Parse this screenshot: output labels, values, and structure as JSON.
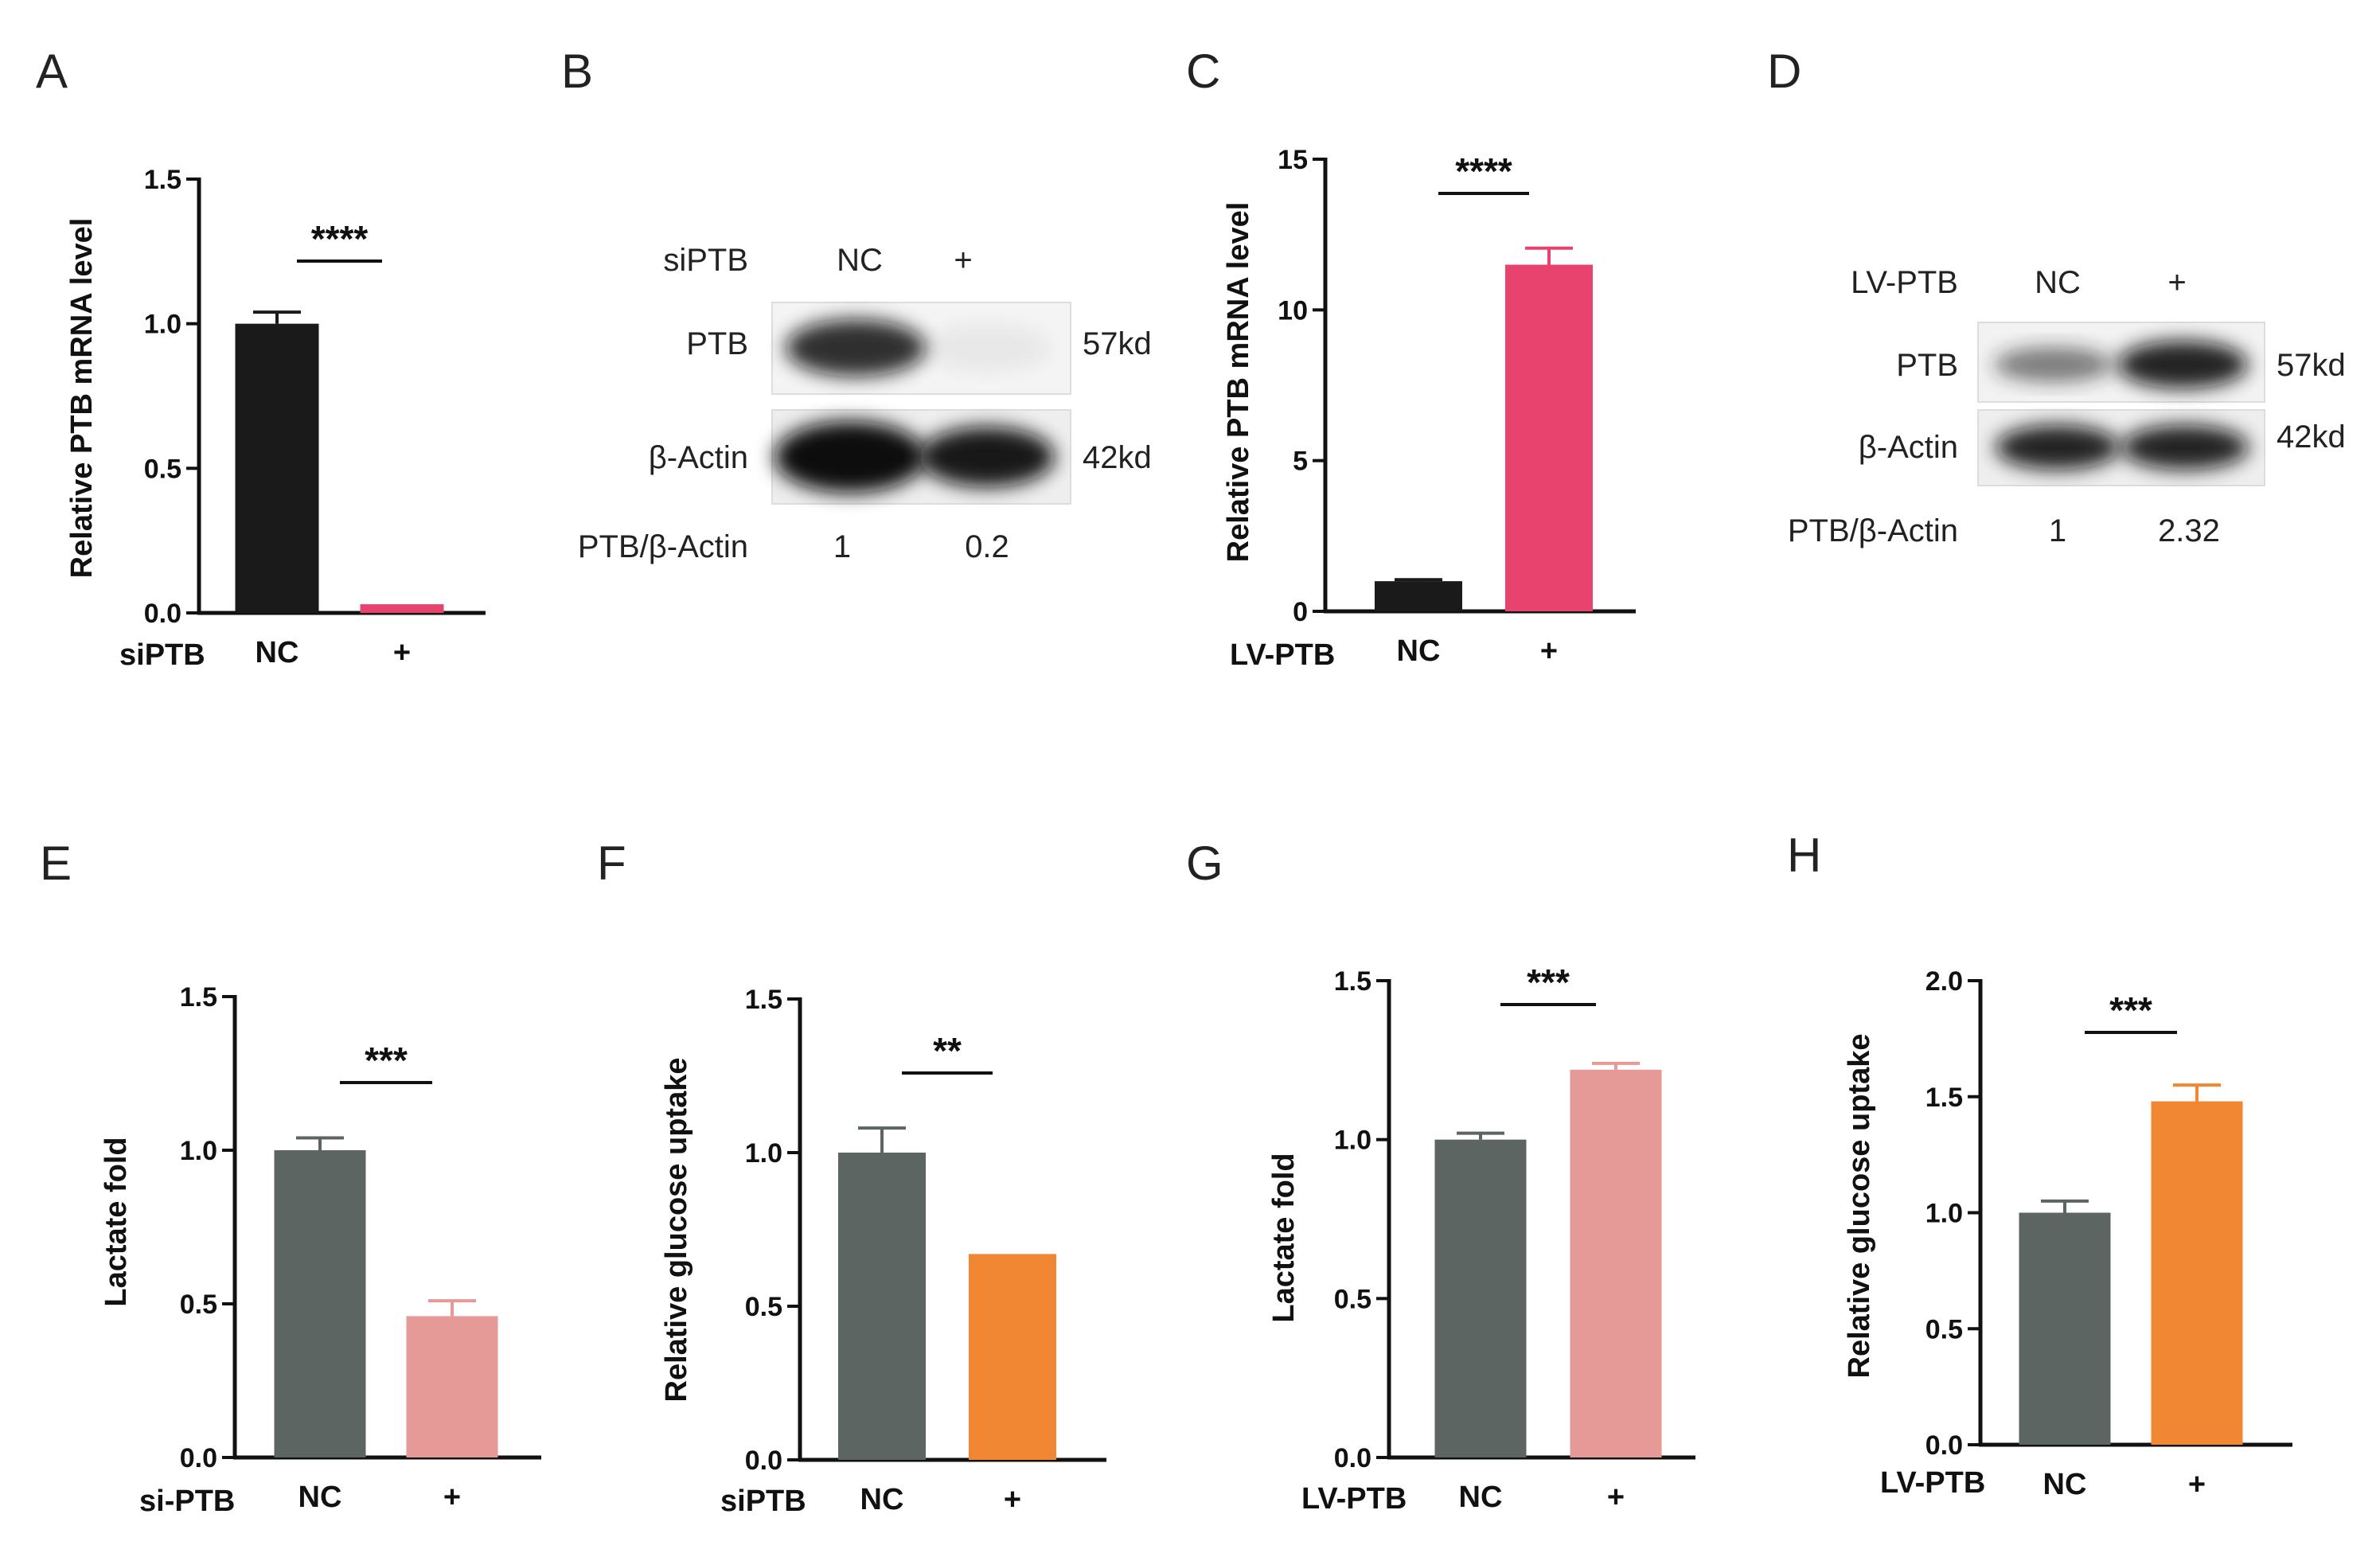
{
  "colors": {
    "black": "#1a1a1a",
    "pink": "#e8426e",
    "gray": "#5d6562",
    "salmon": "#e59a98",
    "orange": "#f18733"
  },
  "chart_data": [
    {
      "id": "A",
      "label": "A",
      "type": "bar",
      "ylabel": "Relative PTB mRNA level",
      "group_label": "siPTB",
      "categories": [
        "NC",
        "+"
      ],
      "values": [
        1.0,
        0.03
      ],
      "errors": [
        0.04,
        0.0
      ],
      "bar_colors": [
        "#1a1a1a",
        "#e8426e"
      ],
      "ylim": [
        0,
        1.5
      ],
      "yticks": [
        "0.0",
        "0.5",
        "1.0",
        "1.5"
      ],
      "yticks_num": [
        0,
        0.5,
        1.0,
        1.5
      ],
      "significance": "****"
    },
    {
      "id": "C",
      "label": "C",
      "type": "bar",
      "ylabel": "Relative PTB mRNA level",
      "group_label": "LV-PTB",
      "categories": [
        "NC",
        "+"
      ],
      "values": [
        1.0,
        11.5
      ],
      "errors": [
        0.05,
        0.55
      ],
      "bar_colors": [
        "#1a1a1a",
        "#e8426e"
      ],
      "ylim": [
        0,
        15
      ],
      "yticks": [
        "0",
        "5",
        "10",
        "15"
      ],
      "yticks_num": [
        0,
        5,
        10,
        15
      ],
      "significance": "****"
    },
    {
      "id": "E",
      "label": "E",
      "type": "bar",
      "ylabel": "Lactate fold",
      "group_label": "si-PTB",
      "categories": [
        "NC",
        "+"
      ],
      "values": [
        1.0,
        0.46
      ],
      "errors": [
        0.04,
        0.05
      ],
      "bar_colors": [
        "#5d6562",
        "#e59a98"
      ],
      "ylim": [
        0,
        1.5
      ],
      "yticks": [
        "0.0",
        "0.5",
        "1.0",
        "1.5"
      ],
      "yticks_num": [
        0,
        0.5,
        1.0,
        1.5
      ],
      "significance": "***"
    },
    {
      "id": "F",
      "label": "F",
      "type": "bar",
      "ylabel": "Relative glucose uptake",
      "group_label": "siPTB",
      "categories": [
        "NC",
        "+"
      ],
      "values": [
        1.0,
        0.67
      ],
      "errors": [
        0.08,
        0.0
      ],
      "bar_colors": [
        "#5d6562",
        "#f18733"
      ],
      "ylim": [
        0,
        1.5
      ],
      "yticks": [
        "0.0",
        "0.5",
        "1.0",
        "1.5"
      ],
      "yticks_num": [
        0,
        0.5,
        1.0,
        1.5
      ],
      "significance": "**"
    },
    {
      "id": "G",
      "label": "G",
      "type": "bar",
      "ylabel": "Lactate fold",
      "group_label": "LV-PTB",
      "categories": [
        "NC",
        "+"
      ],
      "values": [
        1.0,
        1.22
      ],
      "errors": [
        0.02,
        0.02
      ],
      "bar_colors": [
        "#5d6562",
        "#e59a98"
      ],
      "ylim": [
        0,
        1.5
      ],
      "yticks": [
        "0.0",
        "0.5",
        "1.0",
        "1.5"
      ],
      "yticks_num": [
        0,
        0.5,
        1.0,
        1.5
      ],
      "significance": "***"
    },
    {
      "id": "H",
      "label": "H",
      "type": "bar",
      "ylabel": "Relative glucose uptake",
      "group_label": "LV-PTB",
      "categories": [
        "NC",
        "+"
      ],
      "values": [
        1.0,
        1.48
      ],
      "errors": [
        0.05,
        0.07
      ],
      "bar_colors": [
        "#5d6562",
        "#f18733"
      ],
      "ylim": [
        0,
        2.0
      ],
      "yticks": [
        "0.0",
        "0.5",
        "1.0",
        "1.5",
        "2.0"
      ],
      "yticks_num": [
        0,
        0.5,
        1.0,
        1.5,
        2.0
      ],
      "significance": "***"
    }
  ],
  "blots": [
    {
      "id": "B",
      "label": "B",
      "treatment_label": "siPTB",
      "lanes": [
        "NC",
        "+"
      ],
      "rows": [
        {
          "name": "PTB",
          "size": "57kd",
          "intensity": [
            0.85,
            0.05
          ]
        },
        {
          "name": "β-Actin",
          "size": "42kd",
          "intensity": [
            1.0,
            0.95
          ]
        }
      ],
      "ratio_label": "PTB/β-Actin",
      "ratios": [
        "1",
        "0.2"
      ]
    },
    {
      "id": "D",
      "label": "D",
      "treatment_label": "LV-PTB",
      "lanes": [
        "NC",
        "+"
      ],
      "rows": [
        {
          "name": "PTB",
          "size": "57kd",
          "intensity": [
            0.55,
            0.9
          ]
        },
        {
          "name": "β-Actin",
          "size": "42kd",
          "intensity": [
            0.9,
            0.9
          ]
        }
      ],
      "ratio_label": "PTB/β-Actin",
      "ratios": [
        "1",
        "2.32"
      ]
    }
  ]
}
